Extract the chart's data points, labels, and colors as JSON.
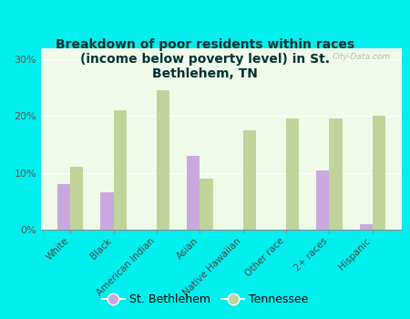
{
  "title": "Breakdown of poor residents within races\n(income below poverty level) in St.\nBethlehem, TN",
  "categories": [
    "White",
    "Black",
    "American Indian",
    "Asian",
    "Native Hawaiian",
    "Other race",
    "2+ races",
    "Hispanic"
  ],
  "st_bethlehem": [
    8.0,
    6.5,
    0.0,
    13.0,
    0.0,
    0.0,
    10.5,
    1.0
  ],
  "tennessee": [
    11.0,
    21.0,
    24.5,
    9.0,
    17.5,
    19.5,
    19.5,
    20.0
  ],
  "bar_color_sb": "#c9a8e0",
  "bar_color_tn": "#c0d49a",
  "bg_color": "#00efef",
  "plot_bg_top": "#f0fae8",
  "plot_bg_bottom": "#d8f0c8",
  "title_color": "#003333",
  "ylabel_ticks": [
    "0%",
    "10%",
    "20%",
    "30%"
  ],
  "yticks": [
    0,
    10,
    20,
    30
  ],
  "ylim": [
    0,
    32
  ],
  "watermark": "City-Data.com",
  "legend_sb": "St. Bethlehem",
  "legend_tn": "Tennessee"
}
